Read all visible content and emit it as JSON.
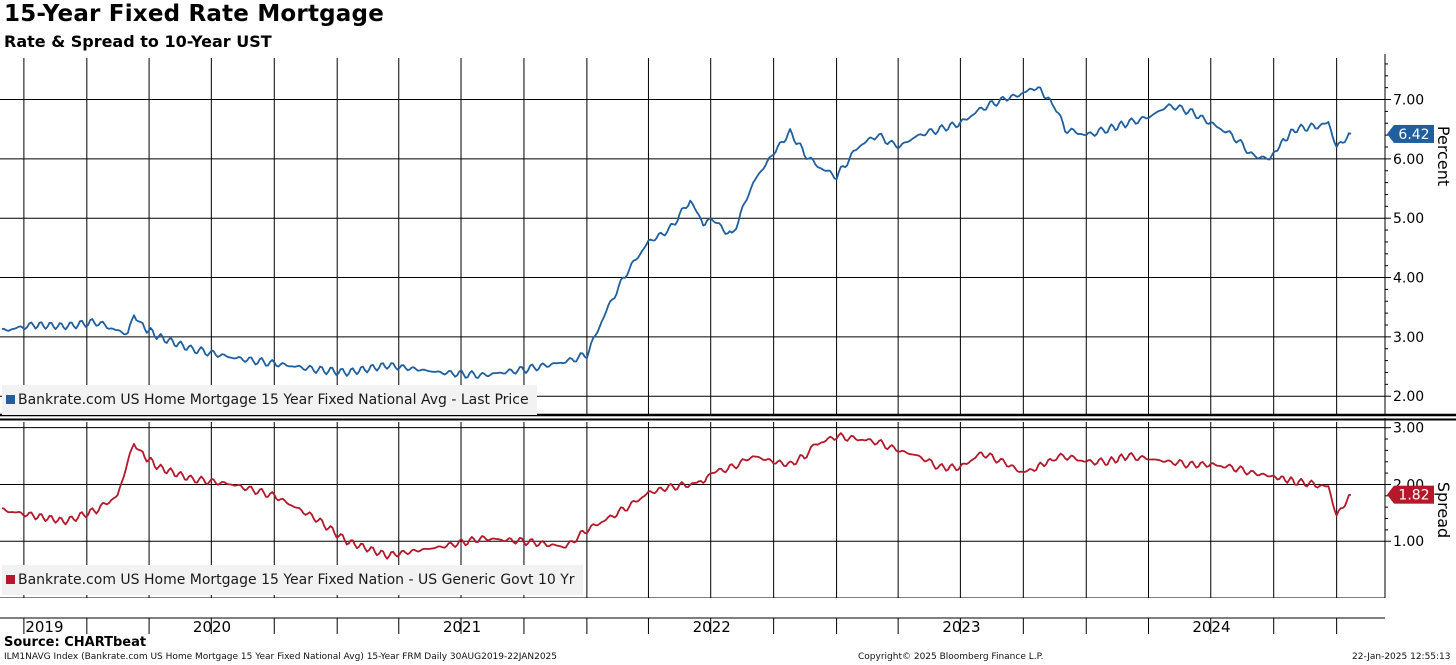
{
  "title": "15-Year Fixed Rate Mortgage",
  "subtitle": "Rate & Spread to 10-Year UST",
  "source": "Source: CHARTbeat",
  "footer": {
    "index_info": "ILM1NAVG Index (Bankrate.com US Home Mortgage 15 Year Fixed National Avg) 15-Year FRM  Daily 30AUG2019-22JAN2025",
    "copyright": "Copyright© 2025 Bloomberg Finance L.P.",
    "timestamp": "22-Jan-2025 12:55:13"
  },
  "colors": {
    "rate": "#1f5fa0",
    "spread": "#b5172b",
    "grid": "#000000"
  },
  "chart_data": [
    {
      "type": "line",
      "panel": "top",
      "ylabel": "Percent",
      "ylim": [
        1.7,
        7.7
      ],
      "yticks": [
        "2.00",
        "3.00",
        "4.00",
        "5.00",
        "6.00",
        "7.00"
      ],
      "last_value_label": "6.42",
      "series": [
        {
          "name": "Bankrate.com US Home Mortgage 15 Year Fixed National Avg - Last Price",
          "x": [
            "2019-08-30",
            "2019-10-15",
            "2019-12-01",
            "2020-01-15",
            "2020-02-15",
            "2020-03-01",
            "2020-03-10",
            "2020-03-20",
            "2020-04-15",
            "2020-06-01",
            "2020-08-01",
            "2020-10-01",
            "2020-12-01",
            "2021-01-15",
            "2021-03-15",
            "2021-06-01",
            "2021-08-01",
            "2021-10-01",
            "2021-12-01",
            "2022-01-01",
            "2022-02-01",
            "2022-03-01",
            "2022-04-01",
            "2022-05-01",
            "2022-06-01",
            "2022-06-20",
            "2022-07-01",
            "2022-08-01",
            "2022-09-01",
            "2022-10-01",
            "2022-10-25",
            "2022-11-15",
            "2022-12-01",
            "2023-01-01",
            "2023-02-01",
            "2023-03-01",
            "2023-04-01",
            "2023-05-01",
            "2023-06-01",
            "2023-07-01",
            "2023-08-01",
            "2023-09-01",
            "2023-10-01",
            "2023-10-20",
            "2023-11-15",
            "2023-12-01",
            "2024-01-01",
            "2024-02-01",
            "2024-03-01",
            "2024-04-01",
            "2024-05-01",
            "2024-06-01",
            "2024-07-01",
            "2024-08-01",
            "2024-09-01",
            "2024-09-25",
            "2024-10-15",
            "2024-11-01",
            "2024-12-01",
            "2024-12-20",
            "2025-01-01",
            "2025-01-22"
          ],
          "values": [
            3.1,
            3.2,
            3.18,
            3.25,
            3.1,
            3.05,
            3.4,
            3.2,
            3.0,
            2.8,
            2.65,
            2.55,
            2.45,
            2.4,
            2.52,
            2.4,
            2.35,
            2.45,
            2.58,
            2.7,
            3.5,
            4.1,
            4.6,
            4.8,
            5.3,
            4.9,
            5.0,
            4.7,
            5.6,
            6.1,
            6.45,
            6.1,
            5.9,
            5.7,
            6.2,
            6.4,
            6.2,
            6.4,
            6.5,
            6.6,
            6.85,
            7.0,
            7.1,
            7.22,
            6.9,
            6.5,
            6.4,
            6.5,
            6.6,
            6.7,
            6.9,
            6.8,
            6.6,
            6.4,
            6.05,
            6.0,
            6.3,
            6.5,
            6.55,
            6.6,
            6.2,
            6.42
          ]
        }
      ]
    },
    {
      "type": "line",
      "panel": "bottom",
      "ylabel": "Spread",
      "ylim": [
        0.0,
        3.1
      ],
      "yticks": [
        "1.00",
        "2.00",
        "3.00"
      ],
      "last_value_label": "1.82",
      "series": [
        {
          "name": "Bankrate.com US Home Mortgage 15 Year Fixed Nation - US Generic Govt 10 Yr",
          "x": [
            "2019-08-30",
            "2019-10-15",
            "2019-12-01",
            "2020-01-15",
            "2020-02-15",
            "2020-03-01",
            "2020-03-10",
            "2020-03-20",
            "2020-04-15",
            "2020-06-01",
            "2020-08-01",
            "2020-10-01",
            "2020-12-01",
            "2021-01-15",
            "2021-03-15",
            "2021-06-01",
            "2021-08-01",
            "2021-10-01",
            "2021-12-01",
            "2022-01-01",
            "2022-02-01",
            "2022-03-01",
            "2022-04-01",
            "2022-05-01",
            "2022-06-01",
            "2022-06-20",
            "2022-07-01",
            "2022-08-01",
            "2022-09-01",
            "2022-10-01",
            "2022-10-25",
            "2022-11-15",
            "2022-12-01",
            "2023-01-01",
            "2023-02-01",
            "2023-03-01",
            "2023-04-01",
            "2023-05-01",
            "2023-06-01",
            "2023-07-01",
            "2023-08-01",
            "2023-09-01",
            "2023-10-01",
            "2023-10-20",
            "2023-11-15",
            "2023-12-01",
            "2024-01-01",
            "2024-02-01",
            "2024-03-01",
            "2024-04-01",
            "2024-05-01",
            "2024-06-01",
            "2024-07-01",
            "2024-08-01",
            "2024-09-01",
            "2024-09-25",
            "2024-10-15",
            "2024-11-01",
            "2024-12-01",
            "2024-12-20",
            "2025-01-01",
            "2025-01-22"
          ],
          "values": [
            1.55,
            1.45,
            1.35,
            1.55,
            1.8,
            2.4,
            2.75,
            2.55,
            2.3,
            2.1,
            2.0,
            1.8,
            1.4,
            1.0,
            0.75,
            0.9,
            1.05,
            1.0,
            0.9,
            1.2,
            1.4,
            1.6,
            1.85,
            1.95,
            2.0,
            2.05,
            2.2,
            2.3,
            2.5,
            2.4,
            2.35,
            2.5,
            2.7,
            2.85,
            2.8,
            2.75,
            2.6,
            2.5,
            2.3,
            2.3,
            2.55,
            2.4,
            2.2,
            2.3,
            2.45,
            2.5,
            2.4,
            2.4,
            2.5,
            2.45,
            2.4,
            2.35,
            2.35,
            2.3,
            2.2,
            2.15,
            2.1,
            2.05,
            2.0,
            1.95,
            1.45,
            1.82
          ]
        }
      ]
    }
  ],
  "x_axis": {
    "year_labels": [
      "2019",
      "2020",
      "2021",
      "2022",
      "2023",
      "2024"
    ],
    "start": "2019-08-30",
    "end": "2025-01-22"
  }
}
